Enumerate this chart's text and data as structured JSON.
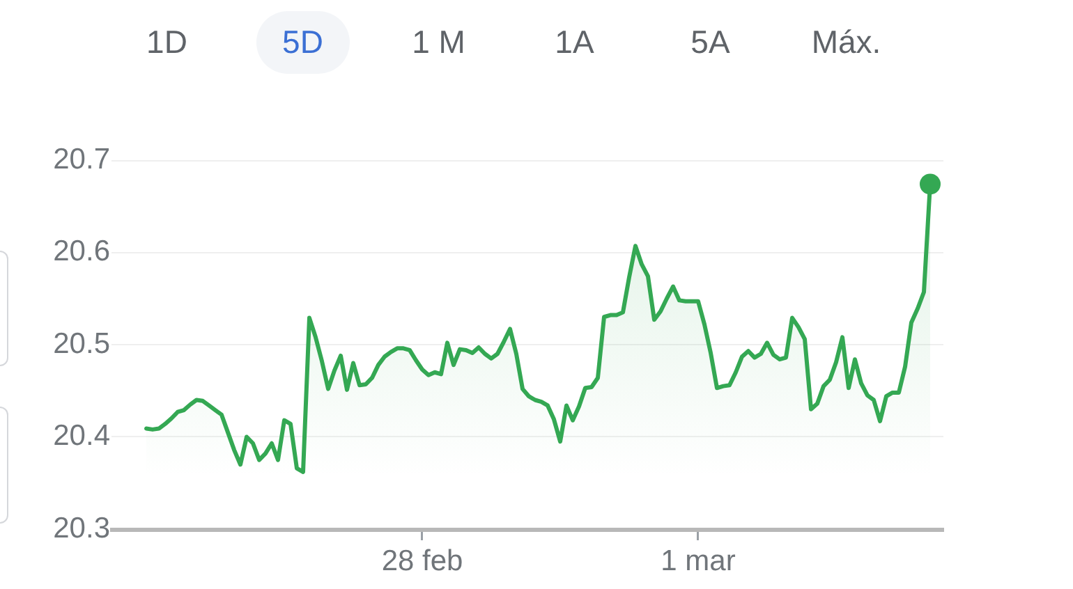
{
  "chart_data": {
    "type": "area",
    "annotations": [
      "1D",
      "5D",
      "1 M",
      "1A",
      "5A",
      "Máx."
    ],
    "categories": [
      null,
      null,
      null,
      null,
      null,
      null,
      null,
      null,
      null,
      null,
      null,
      null,
      null,
      null,
      null,
      null,
      null,
      null,
      null,
      null,
      null,
      null,
      null,
      null,
      null,
      null,
      null,
      null,
      null,
      null,
      null,
      null,
      null,
      null,
      null,
      null,
      null,
      null,
      null,
      null,
      null,
      null,
      null,
      null,
      "28 feb",
      null,
      null,
      null,
      null,
      null,
      null,
      null,
      null,
      null,
      null,
      null,
      null,
      null,
      null,
      null,
      null,
      null,
      null,
      null,
      null,
      null,
      null,
      null,
      null,
      null,
      null,
      null,
      null,
      null,
      null,
      null,
      null,
      null,
      null,
      null,
      null,
      null,
      null,
      null,
      null,
      null,
      null,
      null,
      "1 mar",
      null,
      null,
      null,
      null,
      null,
      null,
      null,
      null,
      null,
      null,
      null,
      null,
      null,
      null,
      null,
      null,
      null,
      null,
      null,
      null,
      null,
      null,
      null,
      null,
      null,
      null,
      null,
      null,
      null,
      null,
      null,
      null,
      null,
      null,
      null,
      null,
      null
    ],
    "series": [
      {
        "color": "#34a853",
        "values": [
          20.409,
          20.408,
          20.409,
          20.414,
          20.42,
          20.427,
          20.429,
          20.435,
          20.44,
          20.439,
          20.434,
          20.429,
          20.424,
          20.405,
          20.386,
          20.37,
          20.4,
          20.393,
          20.375,
          20.382,
          20.393,
          20.375,
          20.418,
          20.414,
          20.366,
          20.362,
          20.529,
          20.508,
          20.482,
          20.452,
          20.472,
          20.488,
          20.451,
          20.48,
          20.456,
          20.457,
          20.464,
          20.478,
          20.487,
          20.492,
          20.496,
          20.496,
          20.494,
          20.483,
          20.473,
          20.467,
          20.47,
          20.468,
          20.502,
          20.478,
          20.495,
          20.494,
          20.491,
          20.497,
          20.49,
          20.485,
          20.49,
          20.503,
          20.517,
          20.49,
          20.452,
          20.444,
          20.44,
          20.438,
          20.434,
          20.419,
          20.395,
          20.434,
          20.418,
          20.433,
          20.453,
          20.454,
          20.464,
          20.53,
          20.532,
          20.532,
          20.535,
          20.573,
          20.607,
          20.587,
          20.574,
          20.527,
          20.536,
          20.55,
          20.563,
          20.548,
          20.547,
          20.547,
          20.547,
          20.522,
          20.491,
          20.453,
          20.455,
          20.456,
          20.47,
          20.487,
          20.493,
          20.486,
          20.49,
          20.502,
          20.489,
          20.484,
          20.486,
          20.529,
          20.519,
          20.506,
          20.43,
          20.436,
          20.455,
          20.462,
          20.481,
          20.508,
          20.453,
          20.484,
          20.458,
          20.445,
          20.44,
          20.417,
          20.444,
          20.448,
          20.448,
          20.476,
          20.524,
          20.539,
          20.557,
          20.674
        ]
      },
      {
        "type": "scatter",
        "color": "#34a853",
        "marker": "circle",
        "values": [
          null,
          null,
          null,
          null,
          null,
          null,
          null,
          null,
          null,
          null,
          null,
          null,
          null,
          null,
          null,
          null,
          null,
          null,
          null,
          null,
          null,
          null,
          null,
          null,
          null,
          null,
          null,
          null,
          null,
          null,
          null,
          null,
          null,
          null,
          null,
          null,
          null,
          null,
          null,
          null,
          null,
          null,
          null,
          null,
          null,
          null,
          null,
          null,
          null,
          null,
          null,
          null,
          null,
          null,
          null,
          null,
          null,
          null,
          null,
          null,
          null,
          null,
          null,
          null,
          null,
          null,
          null,
          null,
          null,
          null,
          null,
          null,
          null,
          null,
          null,
          null,
          null,
          null,
          null,
          null,
          null,
          null,
          null,
          null,
          null,
          null,
          null,
          null,
          null,
          null,
          null,
          null,
          null,
          null,
          null,
          null,
          null,
          null,
          null,
          null,
          null,
          null,
          null,
          null,
          null,
          null,
          null,
          null,
          null,
          null,
          null,
          null,
          null,
          null,
          null,
          null,
          null,
          null,
          null,
          null,
          null,
          null,
          null,
          null,
          null,
          20.674
        ]
      }
    ],
    "ylim": [
      20.3,
      20.7
    ],
    "yticks": [
      20.3,
      20.4,
      20.5,
      20.6,
      20.7
    ],
    "grid": "y"
  }
}
